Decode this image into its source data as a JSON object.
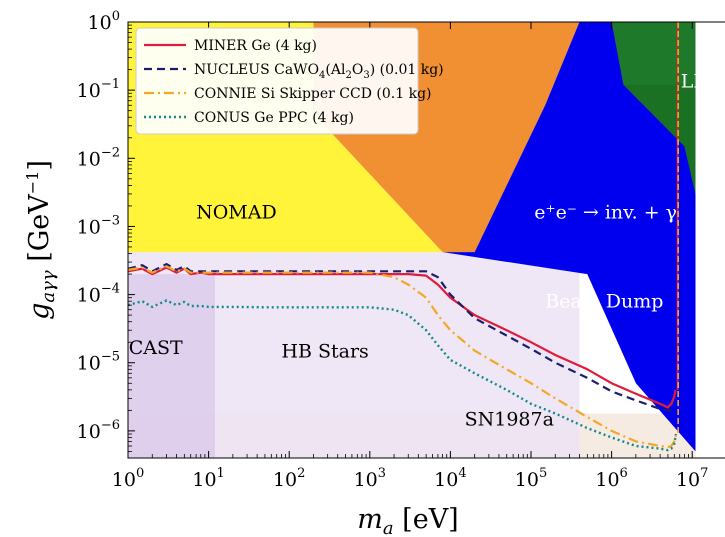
{
  "chart_data": {
    "type": "line",
    "title": "",
    "xlabel": "m_a [eV]",
    "ylabel": "g_aγγ [GeV^-1]",
    "x_scale": "log",
    "y_scale": "log",
    "xlim": [
      1,
      10000000
    ],
    "ylim": [
      4e-07,
      1
    ],
    "grid": false,
    "legend_position": "top-left",
    "x_ticks": [
      {
        "value": 1,
        "base": "10",
        "exp": "0"
      },
      {
        "value": 10,
        "base": "10",
        "exp": "1"
      },
      {
        "value": 100,
        "base": "10",
        "exp": "2"
      },
      {
        "value": 1000,
        "base": "10",
        "exp": "3"
      },
      {
        "value": 10000,
        "base": "10",
        "exp": "4"
      },
      {
        "value": 100000,
        "base": "10",
        "exp": "5"
      },
      {
        "value": 1000000,
        "base": "10",
        "exp": "6"
      },
      {
        "value": 10000000,
        "base": "10",
        "exp": "7"
      }
    ],
    "y_ticks": [
      {
        "value": 1,
        "base": "10",
        "exp": "0"
      },
      {
        "value": 0.1,
        "base": "10",
        "exp": "−1"
      },
      {
        "value": 0.01,
        "base": "10",
        "exp": "−2"
      },
      {
        "value": 0.001,
        "base": "10",
        "exp": "−3"
      },
      {
        "value": 0.0001,
        "base": "10",
        "exp": "−4"
      },
      {
        "value": 1e-05,
        "base": "10",
        "exp": "−5"
      },
      {
        "value": 1e-06,
        "base": "10",
        "exp": "−6"
      }
    ],
    "xlabel_parts": {
      "main": "m",
      "sub": "a",
      "unit": " [eV]"
    },
    "ylabel_parts": {
      "main": "g",
      "sub": "aγγ",
      "unit": " [GeV",
      "unit_exp": "−1",
      "unit_close": "]"
    },
    "regions": [
      {
        "name": "SN1987a",
        "label": "SN1987a",
        "color": "#f3e7dd",
        "opacity": 0.85,
        "points": [
          [
            1,
            1.8e-06
          ],
          [
            11000000.0,
            1.8e-06
          ],
          [
            11000000.0,
            4e-07
          ],
          [
            1,
            4e-07
          ]
        ],
        "label_at": [
          15000.0,
          1.2e-06
        ],
        "label_color": "#000000"
      },
      {
        "name": "HB Stars",
        "label": "HB Stars",
        "color": "#ece3f4",
        "opacity": 0.85,
        "points": [
          [
            1,
            0.00042
          ],
          [
            400000.0,
            0.00042
          ],
          [
            400000.0,
            4e-07
          ],
          [
            1,
            4e-07
          ]
        ],
        "label_at": [
          80,
          1.2e-05
        ],
        "label_color": "#000000"
      },
      {
        "name": "CAST",
        "label": "CAST",
        "color": "#d9c6ea",
        "opacity": 0.7,
        "points": [
          [
            1,
            0.0002
          ],
          [
            12,
            0.0002
          ],
          [
            12,
            4e-07
          ],
          [
            1,
            4e-07
          ]
        ],
        "label_at": [
          1.02,
          1.35e-05
        ],
        "label_color": "#000000"
      },
      {
        "name": "NOMAD",
        "label": "NOMAD",
        "color": "#fff43a",
        "opacity": 1,
        "points": [
          [
            1,
            1
          ],
          [
            200,
            1
          ],
          [
            200,
            0.045
          ],
          [
            8000,
            0.00042
          ],
          [
            1,
            0.00042
          ]
        ],
        "label_at": [
          7,
          0.0013
        ],
        "label_color": "#000000"
      },
      {
        "name": "e+e- -> inv. + gamma",
        "label": "e⁺e⁻ → inv. + γ",
        "color": "#f18f33",
        "opacity": 1,
        "points": [
          [
            200,
            1
          ],
          [
            11000000.0,
            1
          ],
          [
            11000000.0,
            0.00042
          ],
          [
            8000,
            0.00042
          ],
          [
            200,
            0.045
          ]
        ],
        "label_at": [
          110000.0,
          0.0013
        ],
        "label_color": "#ffffff"
      },
      {
        "name": "Beam Dump",
        "label": "Beam Dump",
        "color": "#0000ee",
        "opacity": 1,
        "points": [
          [
            400000.0,
            1
          ],
          [
            11000000.0,
            1
          ],
          [
            11000000.0,
            5e-07
          ],
          [
            2000000.0,
            5e-06
          ],
          [
            500000.0,
            0.0002
          ],
          [
            8000,
            0.00042
          ],
          [
            20000.0,
            0.00042
          ],
          [
            150000.0,
            0.06
          ]
        ],
        "label_at": [
          150000.0,
          6.5e-05
        ],
        "label_color": "#ffffff"
      },
      {
        "name": "LEP",
        "label": "LEP",
        "color": "#1e7a2a",
        "opacity": 1,
        "points": [
          [
            1000000.0,
            1
          ],
          [
            11000000.0,
            1
          ],
          [
            11000000.0,
            0.003
          ],
          [
            8000000.0,
            0.015
          ],
          [
            1400000.0,
            0.12
          ]
        ],
        "label_at": [
          7200000.0,
          0.11
        ],
        "label_color": "#ffffff"
      }
    ],
    "series": [
      {
        "name": "MINER Ge (4 kg)",
        "label_parts": [
          "MINER Ge (4 kg)"
        ],
        "color": "#e01b3c",
        "dash": "",
        "width": 2.2,
        "x": [
          1,
          1.5,
          2,
          3,
          4,
          5,
          6,
          8,
          10,
          20,
          50,
          100,
          300,
          1000,
          3000,
          5000,
          7000,
          10000,
          20000,
          50000,
          100000,
          200000,
          500000,
          1000000,
          2000000,
          4000000,
          5000000,
          5500000,
          6000000,
          6200000
        ],
        "y": [
          0.00022,
          0.00024,
          0.0002,
          0.00025,
          0.00021,
          0.00024,
          0.0002,
          0.00021,
          0.0002,
          0.0002,
          0.0002,
          0.0002,
          0.0002,
          0.0002,
          0.0002,
          0.00019,
          0.00014,
          9e-05,
          5e-05,
          3e-05,
          2e-05,
          1.3e-05,
          8e-06,
          5e-06,
          3.5e-06,
          2.5e-06,
          2.2e-06,
          2.5e-06,
          3.2e-06,
          4e-06
        ]
      },
      {
        "name": "NUCLEUS CaWO4(Al2O3) (0.01 kg)",
        "label_parts": [
          "NUCLEUS CaWO",
          "4",
          "(Al",
          "2",
          "O",
          "3",
          ") (0.01 kg)"
        ],
        "color": "#1a1f6b",
        "dash": "8,5",
        "width": 2.2,
        "x": [
          1,
          1.5,
          2,
          3,
          4,
          5,
          6,
          8,
          10,
          20,
          50,
          100,
          300,
          1000,
          3000,
          5000,
          7000,
          10000,
          20000,
          50000,
          100000,
          200000,
          500000,
          1000000,
          2000000,
          4000000,
          5000000,
          5500000,
          6000000
        ],
        "y": [
          0.00024,
          0.00027,
          0.00022,
          0.00028,
          0.00023,
          0.00026,
          0.00022,
          0.00022,
          0.00022,
          0.00022,
          0.00022,
          0.00022,
          0.00022,
          0.00022,
          0.00022,
          0.00022,
          0.00018,
          0.0001,
          4.5e-05,
          2.5e-05,
          1.6e-05,
          1e-05,
          6e-06,
          3.8e-06,
          2.8e-06,
          2.1e-06,
          2e-06,
          2e-06,
          2e-06
        ]
      },
      {
        "name": "CONNIE Si Skipper CCD (0.1 kg)",
        "label_parts": [
          "CONNIE Si Skipper CCD (0.1 kg)"
        ],
        "color": "#f5a623",
        "dash": "10,4,2,4",
        "width": 2.2,
        "x": [
          1,
          1.5,
          2,
          3,
          4,
          5,
          6,
          8,
          10,
          20,
          50,
          100,
          300,
          1000,
          2000,
          3000,
          5000,
          7000,
          10000,
          20000,
          50000,
          100000,
          200000,
          500000,
          1000000,
          2000000,
          4000000,
          5000000,
          5500000,
          6000000,
          6300000
        ],
        "y": [
          0.00023,
          0.00025,
          0.00021,
          0.00026,
          0.00022,
          0.00024,
          0.00021,
          0.00021,
          0.00021,
          0.00021,
          0.00021,
          0.00021,
          0.00021,
          0.00021,
          0.00018,
          0.00014,
          9e-05,
          5e-05,
          3e-05,
          1.5e-05,
          8e-06,
          5e-06,
          3e-06,
          1.6e-06,
          1e-06,
          7e-07,
          6e-07,
          5.8e-07,
          6e-07,
          7e-07,
          9e-07
        ]
      },
      {
        "name": "CONUS Ge PPC (4 kg)",
        "label_parts": [
          "CONUS Ge PPC (4 kg)"
        ],
        "color": "#128a8a",
        "dash": "2,3",
        "width": 2.4,
        "x": [
          1,
          1.5,
          2,
          3,
          4,
          5,
          6,
          8,
          10,
          20,
          50,
          100,
          300,
          1000,
          2000,
          3000,
          5000,
          7000,
          10000,
          20000,
          50000,
          100000,
          200000,
          500000,
          1000000,
          2000000,
          4000000,
          5000000,
          5500000,
          6000000,
          6300000
        ],
        "y": [
          7e-05,
          8e-05,
          6.6e-05,
          8.2e-05,
          7e-05,
          7.8e-05,
          6.8e-05,
          6.8e-05,
          6.6e-05,
          6.6e-05,
          6.5e-05,
          6.5e-05,
          6.5e-05,
          6.5e-05,
          6e-05,
          5e-05,
          3e-05,
          1.8e-05,
          1.1e-05,
          7e-06,
          4e-06,
          2.5e-06,
          1.8e-06,
          1.1e-06,
          8e-07,
          6e-07,
          5.5e-07,
          5.2e-07,
          5.5e-07,
          6.5e-07,
          9e-07
        ]
      }
    ]
  }
}
